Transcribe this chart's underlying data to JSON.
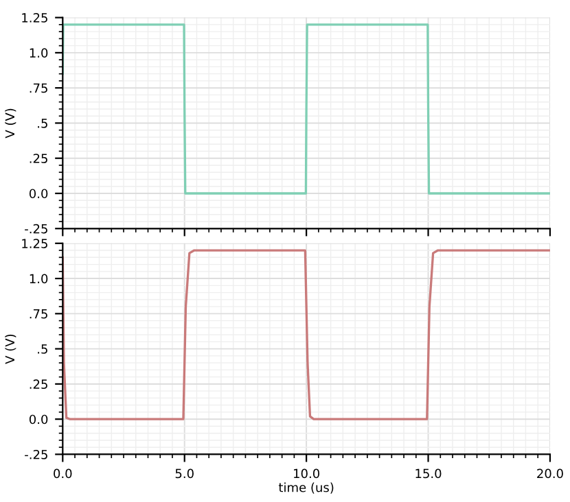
{
  "chart_data": [
    {
      "type": "line",
      "x": [
        0,
        0.02,
        0.03,
        4.98,
        5.0,
        5.03,
        9.98,
        10.0,
        10.03,
        14.98,
        15.0,
        15.03,
        20
      ],
      "series": [
        {
          "color": "#7fcfb4",
          "values": [
            0.85,
            1.2,
            1.2,
            1.2,
            0.6,
            0,
            0,
            0.6,
            1.2,
            1.2,
            0.6,
            0,
            0
          ]
        }
      ],
      "xlim": [
        0,
        20
      ],
      "ylim": [
        -0.25,
        1.25
      ],
      "yticks": [
        {
          "value": 1.25,
          "label": "1.25"
        },
        {
          "value": 1.0,
          "label": "1.0"
        },
        {
          "value": 0.75,
          "label": ".75"
        },
        {
          "value": 0.5,
          "label": ".5"
        },
        {
          "value": 0.25,
          "label": ".25"
        },
        {
          "value": 0,
          "label": "0.0"
        },
        {
          "value": -0.25,
          "label": "-.25"
        }
      ],
      "ylabel": "V (V)",
      "grid": true,
      "tick_labels": "y"
    },
    {
      "type": "line",
      "x": [
        0,
        0.05,
        0.15,
        0.3,
        4.95,
        5.05,
        5.2,
        5.4,
        9.95,
        10.05,
        10.15,
        10.3,
        14.95,
        15.05,
        15.2,
        15.4,
        20
      ],
      "series": [
        {
          "color": "#c97a7a",
          "values": [
            1.15,
            0.4,
            0.01,
            0,
            0,
            0.8,
            1.18,
            1.2,
            1.2,
            0.4,
            0.02,
            0,
            0,
            0.8,
            1.18,
            1.2,
            1.2
          ]
        }
      ],
      "xlim": [
        0,
        20
      ],
      "ylim": [
        -0.25,
        1.25
      ],
      "xticks": [
        {
          "value": 0,
          "label": "0.0"
        },
        {
          "value": 5,
          "label": "5.0"
        },
        {
          "value": 10,
          "label": "10.0"
        },
        {
          "value": 15,
          "label": "15.0"
        },
        {
          "value": 20,
          "label": "20.0"
        }
      ],
      "yticks": [
        {
          "value": 1.25,
          "label": "1.25"
        },
        {
          "value": 1.0,
          "label": "1.0"
        },
        {
          "value": 0.75,
          "label": ".75"
        },
        {
          "value": 0.5,
          "label": ".5"
        },
        {
          "value": 0.25,
          "label": ".25"
        },
        {
          "value": 0,
          "label": "0.0"
        },
        {
          "value": -0.25,
          "label": "-.25"
        }
      ],
      "xlabel": "time (us)",
      "ylabel": "V (V)",
      "grid": true
    }
  ]
}
